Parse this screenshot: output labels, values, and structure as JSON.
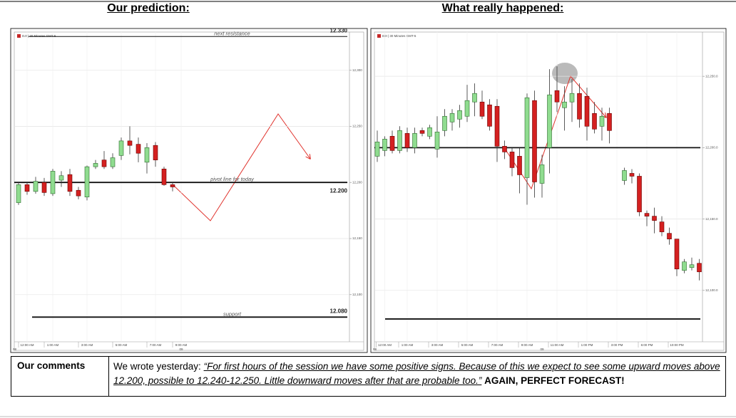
{
  "header": {
    "left_title": "Our prediction:",
    "right_title": "What really happened:"
  },
  "chart_data": [
    {
      "type": "candlestick",
      "source_label": "DJI | 30 Minutes GMT-5",
      "dates": [
        "08",
        "09"
      ],
      "categories": [
        null,
        "12:00 AM",
        null,
        null,
        "1:00 AM",
        null,
        null,
        null,
        "3:00 AM",
        null,
        null,
        null,
        "5:00 AM",
        null,
        null,
        null,
        "7:00 AM",
        null,
        null,
        "9:00 AM",
        null,
        null,
        null,
        null,
        null,
        null,
        null,
        null,
        null,
        null,
        null,
        null,
        null,
        null,
        null,
        null,
        null,
        null,
        null
      ],
      "open": [
        12182,
        12198,
        12192,
        12200,
        12190,
        12202,
        12207,
        12193,
        12187,
        12214,
        12220,
        12214,
        12224,
        12237,
        12234,
        12218,
        12233,
        12212,
        12198,
        null,
        null,
        null,
        null,
        null,
        null,
        null,
        null,
        null,
        null,
        null,
        null,
        null,
        null,
        null,
        null,
        null,
        null,
        null,
        null
      ],
      "high": [
        12200,
        12200,
        12205,
        12204,
        12212,
        12210,
        12212,
        12196,
        12215,
        12220,
        12228,
        12226,
        12240,
        12250,
        12240,
        12235,
        12236,
        12214,
        12200,
        null,
        null,
        null,
        null,
        null,
        null,
        null,
        null,
        null,
        null,
        null,
        null,
        null,
        null,
        null,
        null,
        null,
        null,
        null,
        null
      ],
      "low": [
        12180,
        12189,
        12190,
        12188,
        12188,
        12196,
        12188,
        12185,
        12184,
        12212,
        12212,
        12212,
        12220,
        12225,
        12218,
        12208,
        12214,
        12197,
        12192,
        null,
        null,
        null,
        null,
        null,
        null,
        null,
        null,
        null,
        null,
        null,
        null,
        null,
        null,
        null,
        null,
        null,
        null,
        null,
        null
      ],
      "close": [
        12198,
        12192,
        12201,
        12191,
        12210,
        12206,
        12192,
        12188,
        12214,
        12217,
        12214,
        12222,
        12237,
        12233,
        12226,
        12231,
        12220,
        12198,
        12196,
        null,
        null,
        null,
        null,
        null,
        null,
        null,
        null,
        null,
        null,
        null,
        null,
        null,
        null,
        null,
        null,
        null,
        null,
        null,
        null
      ],
      "up_color": "#8fdc8f",
      "down_color": "#d42020",
      "ylim": [
        12058,
        12334
      ],
      "yticks": [
        {
          "value": 12100,
          "label": "12,100"
        },
        {
          "value": 12150,
          "label": "12,150"
        },
        {
          "value": 12200,
          "label": "12,200"
        },
        {
          "value": 12250,
          "label": "12,250"
        },
        {
          "value": 12300,
          "label": "12,300"
        }
      ],
      "grid": true,
      "levels": [
        {
          "name": "next resistance",
          "value": 12330,
          "value_label": "12.330"
        },
        {
          "name": "pivot line for today",
          "value": 12200,
          "value_label": "12.200"
        },
        {
          "name": "support",
          "value": 12080,
          "value_label": "12.080"
        }
      ]
    },
    {
      "type": "candlestick",
      "source_label": "DJI | 30 Minutes GMT-5",
      "dates": [
        "08",
        "09"
      ],
      "categories": [
        null,
        "12:00 AM",
        null,
        null,
        "1:00 AM",
        null,
        null,
        null,
        "3:00 AM",
        null,
        null,
        null,
        "5:00 AM",
        null,
        null,
        null,
        "7:00 AM",
        null,
        null,
        null,
        "9:00 AM",
        null,
        null,
        null,
        "11:00 AM",
        null,
        null,
        null,
        "1:00 PM",
        null,
        null,
        null,
        "3:00 PM",
        null,
        null,
        null,
        "6:00 PM",
        null,
        null,
        null,
        "10:00 PM",
        null,
        null,
        null
      ],
      "open": [
        12194,
        12198,
        12208,
        12198,
        12210,
        12200,
        12212,
        12208,
        12199,
        12212,
        12218,
        12220,
        12222,
        12232,
        12232,
        12230,
        12229,
        12201,
        12197,
        12194,
        12179,
        12233,
        12175,
        12200,
        12240,
        12228,
        12232,
        12238,
        12236,
        12224,
        12215,
        12224,
        null,
        12177,
        12182,
        12180,
        12154,
        12152,
        12148,
        12140,
        12136,
        12114,
        12116,
        12119
      ],
      "high": [
        12212,
        12208,
        12212,
        12215,
        12214,
        12214,
        12214,
        12216,
        12222,
        12227,
        12227,
        12230,
        12244,
        12245,
        12240,
        12234,
        12234,
        12205,
        12200,
        12200,
        12238,
        12240,
        12195,
        12255,
        12257,
        12243,
        12248,
        12245,
        12242,
        12232,
        12228,
        12228,
        null,
        12186,
        12185,
        12182,
        12156,
        12158,
        12152,
        12144,
        12136,
        12122,
        12123,
        12122
      ],
      "low": [
        12190,
        12194,
        12196,
        12196,
        12197,
        12196,
        12208,
        12206,
        12193,
        12208,
        12212,
        12214,
        12218,
        12222,
        12220,
        12212,
        12190,
        12192,
        12180,
        12168,
        12160,
        12165,
        12165,
        12182,
        12225,
        12212,
        12218,
        12214,
        12205,
        12210,
        12205,
        12203,
        null,
        12174,
        12175,
        12152,
        12145,
        12140,
        12138,
        12132,
        12110,
        12112,
        12114,
        12107
      ],
      "close": [
        12204,
        12206,
        12198,
        12212,
        12200,
        12210,
        12210,
        12214,
        12211,
        12222,
        12224,
        12226,
        12233,
        12238,
        12222,
        12215,
        12201,
        12197,
        12186,
        12181,
        12235,
        12176,
        12188,
        12237,
        12232,
        12232,
        12238,
        12220,
        12215,
        12213,
        12222,
        12212,
        null,
        12184,
        12180,
        12155,
        12152,
        12149,
        12141,
        12136,
        12115,
        12120,
        12118,
        12113
      ],
      "up_color": "#8fdc8f",
      "down_color": "#d42020",
      "ylim": [
        12064,
        12281
      ],
      "yticks": [
        {
          "value": 12100,
          "label": "12,100.0"
        },
        {
          "value": 12150,
          "label": "12,150.0"
        },
        {
          "value": 12200,
          "label": "12,200.0"
        },
        {
          "value": 12250,
          "label": "12,250.0"
        }
      ],
      "grid": true,
      "levels": [
        {
          "value": 12200
        },
        {
          "value": 12080
        }
      ]
    }
  ],
  "comments": {
    "label": "Our comments",
    "intro": "We wrote yesterday:",
    "quote": "“For first hours of the session we have some positive signs. Because of this we expect to see some upward moves above 12.200, possible to 12.240-12.250. Little downward moves after that are probable too.”",
    "conclusion": "AGAIN, PERFECT FORECAST!"
  }
}
